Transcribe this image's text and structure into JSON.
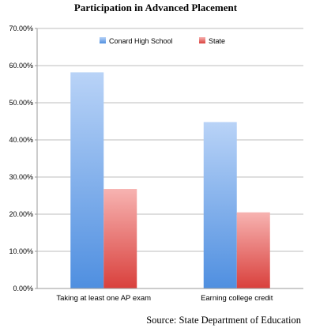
{
  "chart_data": {
    "type": "bar",
    "title": "Participation in Advanced Placement",
    "source": "Source: State Department of Education",
    "categories": [
      "Taking at least one AP exam",
      "Earning college credit"
    ],
    "series": [
      {
        "name": "Conard High School",
        "values": [
          58.2,
          44.8
        ]
      },
      {
        "name": "State",
        "values": [
          26.8,
          20.5
        ]
      }
    ],
    "ylim": [
      0,
      70
    ],
    "yticks": [
      "0.00%",
      "10.00%",
      "20.00%",
      "30.00%",
      "40.00%",
      "50.00%",
      "60.00%",
      "70.00%"
    ],
    "grid": true,
    "legend_position": "top"
  },
  "colors": {
    "conard_top": "#b9d3f7",
    "conard_bottom": "#4f8fe0",
    "state_top": "#f7b3b1",
    "state_bottom": "#d9403c",
    "grid": "#bdbdbd",
    "axis": "#9a9a9a"
  }
}
